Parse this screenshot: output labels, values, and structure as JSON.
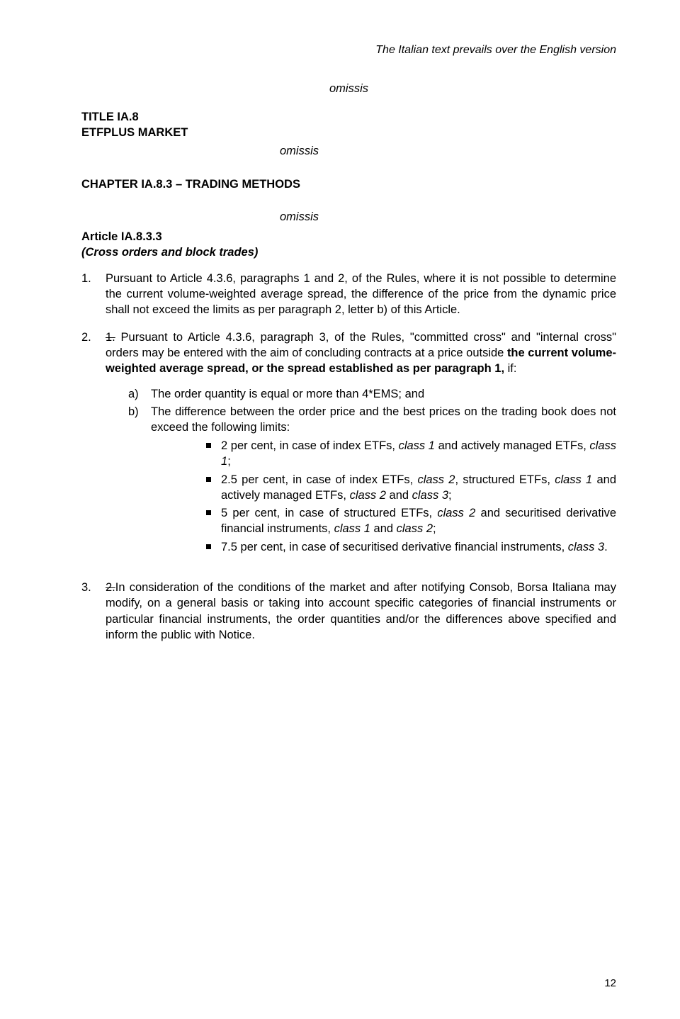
{
  "header_note": "The Italian text prevails over the English version",
  "omissis": "omissis",
  "title_line1": "TITLE IA.8",
  "title_line2": "ETFPLUS MARKET",
  "chapter": "CHAPTER IA.8.3 – TRADING METHODS",
  "article_head": "Article IA.8.3.3",
  "article_sub": "(Cross orders and block trades)",
  "p1_num": "1.",
  "p1_body": "Pursuant to Article 4.3.6, paragraphs 1 and 2, of the Rules, where it is not possible to determine the current volume-weighted average spread, the difference of the price from the dynamic price shall not exceed the limits as per paragraph 2, letter b) of this Article.",
  "p2_num": "2.",
  "p2_strike": "1.",
  "p2_a": " Pursuant to Article 4.3.6, paragraph 3, of the Rules, \"committed cross\" and \"internal cross\" orders may be entered with the aim of concluding contracts at a price outside ",
  "p2_b_bold": "the current volume-weighted average spread, or the spread established as per paragraph 1,",
  "p2_c": " if:",
  "sub_a_marker": "a)",
  "sub_a_txt": "The order quantity is equal or more than 4*EMS; and",
  "sub_b_marker": "b)",
  "sub_b_txt": "The difference between the order price and the best prices on the trading book does not exceed the following  limits:",
  "b1_a": "2 per cent, in case of index ETFs, ",
  "b1_i1": "class 1",
  "b1_b": " and actively managed ETFs, ",
  "b1_i2": "class 1",
  "b1_c": ";",
  "b2_a": "2.5 per cent, in case of index ETFs, ",
  "b2_i1": "class 2",
  "b2_b": ", structured ETFs, ",
  "b2_i2": "class 1",
  "b2_c": " and actively managed ETFs, ",
  "b2_i3": "class 2",
  "b2_d": " and ",
  "b2_i4": "class 3",
  "b2_e": ";",
  "b3_a": "5 per cent, in case of structured ETFs, ",
  "b3_i1": "class 2",
  "b3_b": " and  securitised derivative financial instruments, ",
  "b3_i2": "class 1",
  "b3_c": " and ",
  "b3_i3": "class 2",
  "b3_d": ";",
  "b4_a": "7.5 per cent, in case of securitised derivative financial instruments, ",
  "b4_i1": "class 3",
  "b4_b": ".",
  "p3_num": "3.",
  "p3_strike": "2.",
  "p3_body": "In consideration of the conditions of the market and after notifying Consob, Borsa Italiana may modify, on a general basis or taking into account specific categories of financial instruments or particular financial instruments, the order quantities and/or the differences above specified and inform the public with Notice.",
  "page_num": "12"
}
